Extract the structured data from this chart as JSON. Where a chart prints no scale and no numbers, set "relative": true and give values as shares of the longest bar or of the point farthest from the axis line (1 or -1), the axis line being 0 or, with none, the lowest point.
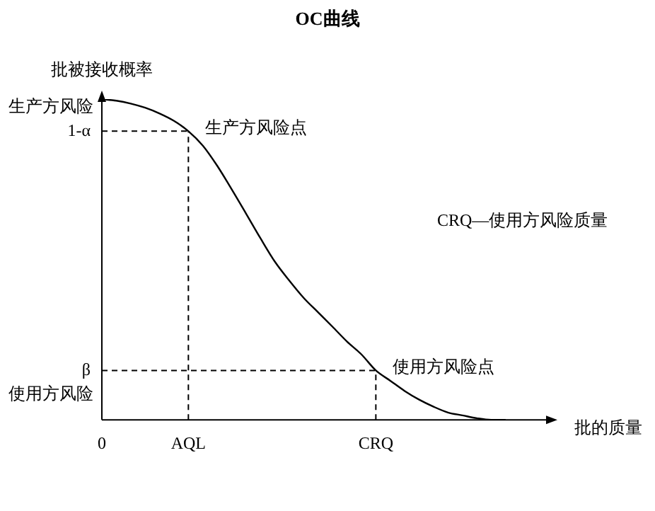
{
  "chart_data": {
    "type": "line",
    "relative": true,
    "title": "OC曲线",
    "ylabel": "批被接收概率",
    "xlabel": "批的质量",
    "color": "#000000",
    "marker": "none",
    "line_style": "solid",
    "legend": false,
    "grid": false,
    "categories": [
      "0",
      null,
      null,
      null,
      null,
      null,
      "AQL",
      null,
      null,
      null,
      null,
      null,
      null,
      null,
      null,
      null,
      null,
      null,
      null,
      "CRQ",
      null,
      null,
      null,
      null,
      null,
      null,
      null,
      null,
      null,
      null,
      null,
      null
    ],
    "values": [
      1,
      0.995,
      0.986,
      0.973,
      0.955,
      0.932,
      0.9,
      0.855,
      0.792,
      0.719,
      0.643,
      0.566,
      0.493,
      0.434,
      0.38,
      0.335,
      0.29,
      0.244,
      0.204,
      0.154,
      0.122,
      0.09,
      0.063,
      0.041,
      0.023,
      0.014,
      0.005,
      0,
      0,
      null,
      null,
      null
    ],
    "ref_lines": [
      {
        "axis": "y",
        "value": 0.9,
        "label": "1-α",
        "line_style": "dashed"
      },
      {
        "axis": "y",
        "value": 0.154,
        "label": "β",
        "line_style": "dashed"
      },
      {
        "axis": "x",
        "value": "AQL",
        "line_style": "dashed"
      },
      {
        "axis": "x",
        "value": "CRQ",
        "line_style": "dashed"
      }
    ],
    "annotations": [
      "生产方风险",
      "使用方风险",
      {
        "text": "生产方风险点",
        "x": "AQL",
        "y": 0.9
      },
      {
        "text": "使用方风险点",
        "x": "CRQ",
        "y": 0.154
      },
      "CRQ—使用方风险质量"
    ]
  }
}
